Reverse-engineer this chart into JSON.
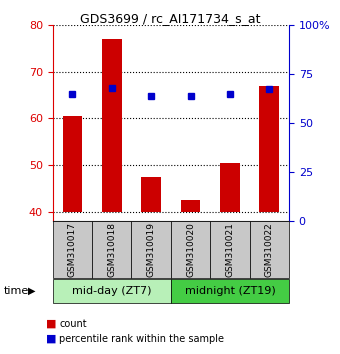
{
  "title": "GDS3699 / rc_AI171734_s_at",
  "samples": [
    "GSM310017",
    "GSM310018",
    "GSM310019",
    "GSM310020",
    "GSM310021",
    "GSM310022"
  ],
  "counts": [
    60.5,
    77.0,
    47.5,
    42.5,
    50.5,
    67.0
  ],
  "percentile_ranks": [
    65.0,
    68.0,
    63.5,
    63.5,
    65.0,
    67.5
  ],
  "groups": [
    {
      "label": "mid-day (ZT7)",
      "samples_idx": [
        0,
        1,
        2
      ],
      "color": "#b8f0b8"
    },
    {
      "label": "midnight (ZT19)",
      "samples_idx": [
        3,
        4,
        5
      ],
      "color": "#44cc44"
    }
  ],
  "ylim_left": [
    38,
    80
  ],
  "ylim_right": [
    0,
    100
  ],
  "yticks_left": [
    40,
    50,
    60,
    70,
    80
  ],
  "yticks_right": [
    0,
    25,
    50,
    75,
    100
  ],
  "ytick_labels_right": [
    "0",
    "25",
    "50",
    "75",
    "100%"
  ],
  "left_axis_color": "#dd0000",
  "right_axis_color": "#0000cc",
  "bar_color": "#cc0000",
  "dot_color": "#0000cc",
  "background_plot": "#ffffff",
  "background_fig": "#ffffff",
  "xlabel_area_color": "#c8c8c8",
  "bar_bottom": 40,
  "bar_width": 0.5,
  "time_label": "time",
  "arrow": "▶",
  "legend_count_color": "#cc0000",
  "legend_pct_color": "#0000cc",
  "legend_count": "count",
  "legend_pct": "percentile rank within the sample"
}
